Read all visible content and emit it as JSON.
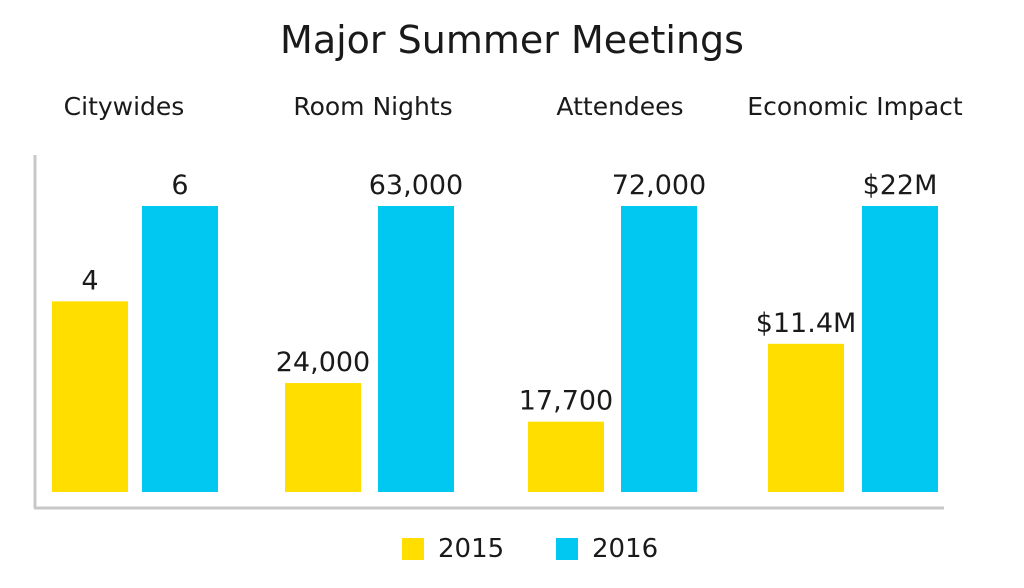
{
  "chart_data": {
    "type": "bar",
    "title": "Major Summer Meetings",
    "groups": [
      {
        "name": "Citywides",
        "values": [
          4,
          6
        ],
        "labels": [
          "4",
          "6"
        ],
        "max": 6
      },
      {
        "name": "Room Nights",
        "values": [
          24000,
          63000
        ],
        "labels": [
          "24,000",
          "63,000"
        ],
        "max": 63000
      },
      {
        "name": "Attendees",
        "values": [
          17700,
          72000
        ],
        "labels": [
          "17,700",
          "72,000"
        ],
        "max": 72000
      },
      {
        "name": "Economic Impact",
        "values": [
          11.4,
          22
        ],
        "labels": [
          "$11.4M",
          "$22M"
        ],
        "max": 22
      }
    ],
    "series": [
      {
        "name": "2015",
        "color": "#FFDE00"
      },
      {
        "name": "2016",
        "color": "#00C8F0"
      }
    ],
    "legend_position": "bottom",
    "grid": false
  }
}
